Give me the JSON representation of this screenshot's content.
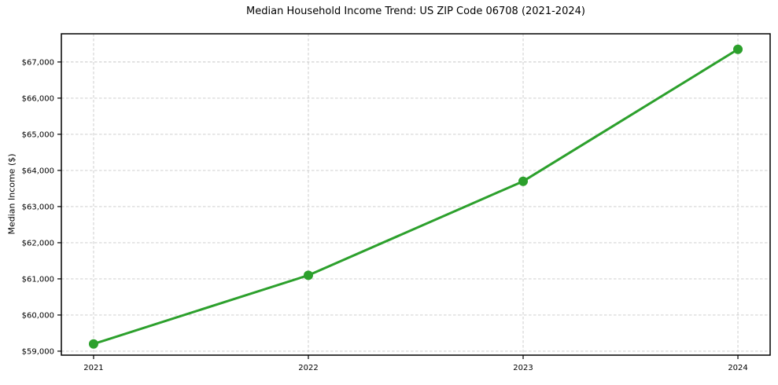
{
  "page": {
    "background": "#ffffff",
    "text_color": "#000000"
  },
  "chart_data": {
    "type": "line",
    "title": "Median Household Income Trend: US ZIP Code 06708 (2021-2024)",
    "xlabel": "",
    "ylabel": "Median Income ($)",
    "x": [
      2021,
      2022,
      2023,
      2024
    ],
    "x_tick_labels": [
      "2021",
      "2022",
      "2023",
      "2024"
    ],
    "series": [
      {
        "name": "Median Household Income",
        "values": [
          59200,
          61100,
          63700,
          67350
        ],
        "color": "#2ca02c",
        "marker": "circle",
        "line_width": 3,
        "marker_radius": 6
      }
    ],
    "y_ticks": [
      59000,
      60000,
      61000,
      62000,
      63000,
      64000,
      65000,
      66000,
      67000
    ],
    "y_tick_labels": [
      "$59,000",
      "$60,000",
      "$61,000",
      "$62,000",
      "$63,000",
      "$64,000",
      "$65,000",
      "$66,000",
      "$67,000"
    ],
    "xlim": [
      2020.85,
      2024.15
    ],
    "ylim": [
      58890,
      67780
    ],
    "grid": true,
    "grid_style": "dashed",
    "grid_color": "#c8c8c8",
    "spine_color": "#000000",
    "legend_position": "none"
  }
}
